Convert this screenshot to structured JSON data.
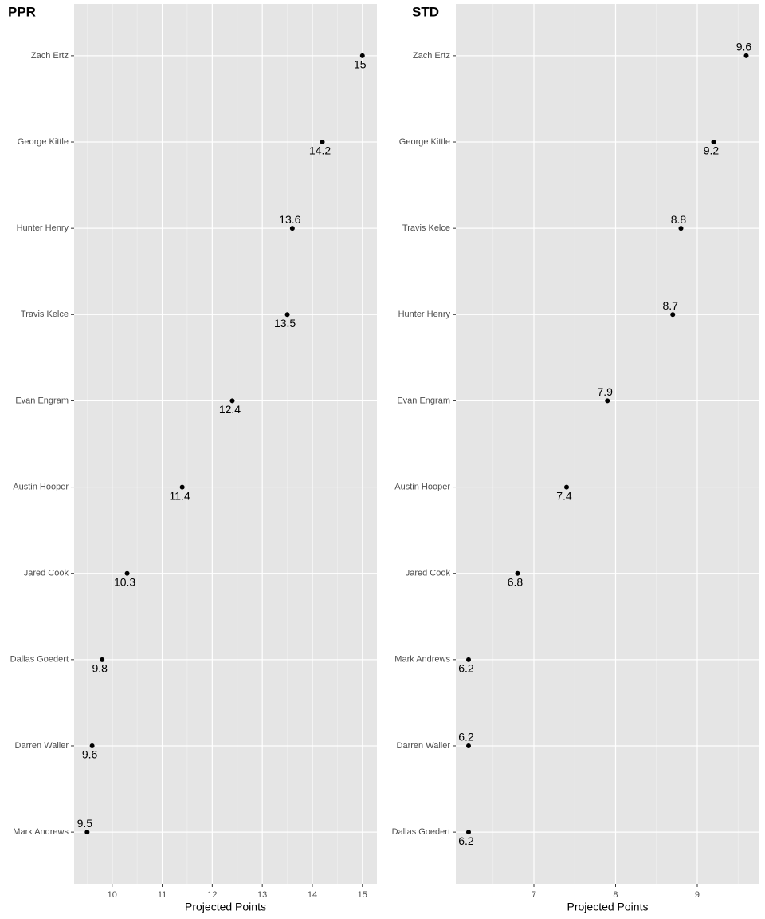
{
  "chart_data": [
    {
      "type": "dot",
      "title": "PPR",
      "xlabel": "Projected Points",
      "categories": [
        "Zach Ertz",
        "George Kittle",
        "Hunter Henry",
        "Travis Kelce",
        "Evan Engram",
        "Austin Hooper",
        "Jared Cook",
        "Dallas Goedert",
        "Darren Waller",
        "Mark Andrews"
      ],
      "values": [
        15,
        14.2,
        13.6,
        13.5,
        12.4,
        11.4,
        10.3,
        9.8,
        9.6,
        9.5
      ],
      "color": "#000000",
      "xlim": [
        9.24,
        15.29
      ],
      "xticks": [
        10,
        11,
        12,
        13,
        14,
        15
      ],
      "xminor": [
        9.5,
        10.5,
        11.5,
        12.5,
        13.5,
        14.5
      ],
      "grid": true
    },
    {
      "type": "dot",
      "title": "STD",
      "xlabel": "Projected Points",
      "categories": [
        "Zach Ertz",
        "George Kittle",
        "Travis Kelce",
        "Hunter Henry",
        "Evan Engram",
        "Austin Hooper",
        "Jared Cook",
        "Mark Andrews",
        "Darren Waller",
        "Dallas Goedert"
      ],
      "values": [
        9.6,
        9.2,
        8.8,
        8.7,
        7.9,
        7.4,
        6.8,
        6.2,
        6.2,
        6.2
      ],
      "color": "#000000",
      "xlim": [
        6.044,
        9.761
      ],
      "xticks": [
        7,
        8,
        9
      ],
      "xminor": [
        6.5,
        7.5,
        8.5,
        9.5
      ],
      "grid": true
    }
  ]
}
